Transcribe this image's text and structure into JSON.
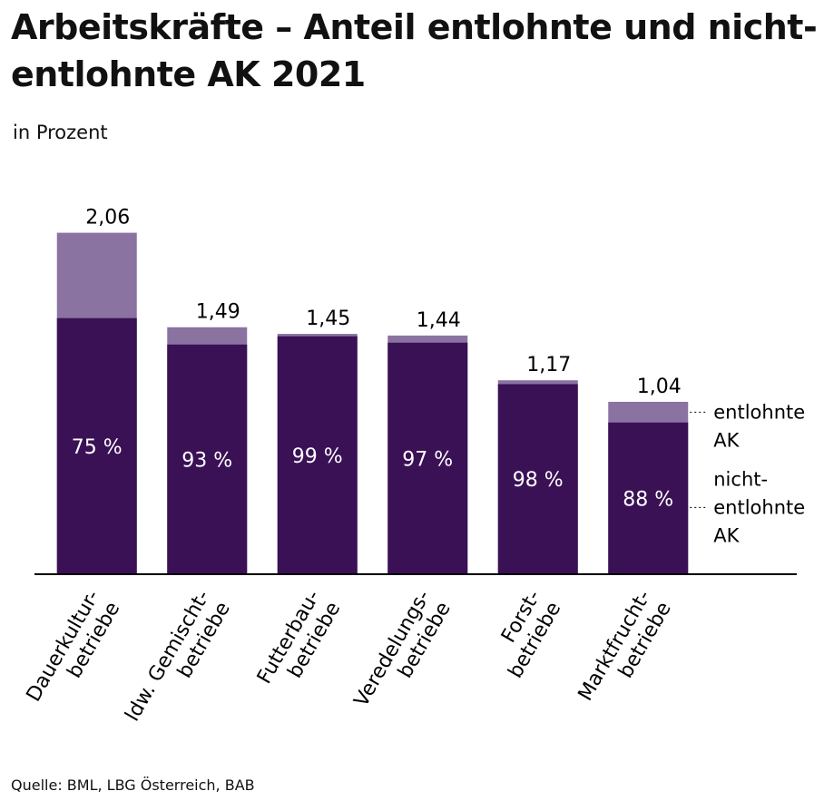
{
  "chart_data": {
    "type": "bar",
    "title": "Arbeitskräfte – Anteil entlohnte und nicht-entlohnte AK 2021",
    "subtitle": "in Prozent",
    "source": "Quelle: BML, LBG Österreich, BAB",
    "categories": [
      [
        "Dauerkultur-",
        "betriebe"
      ],
      [
        "ldw. Gemischt-",
        "betriebe"
      ],
      [
        "Futterbau-",
        "betriebe"
      ],
      [
        "Veredelungs-",
        "betriebe"
      ],
      [
        "Forst-",
        "betriebe"
      ],
      [
        "Marktfrucht-",
        "betriebe"
      ]
    ],
    "totals": [
      2.06,
      1.49,
      1.45,
      1.44,
      1.17,
      1.04
    ],
    "totals_labels": [
      "2,06",
      "1,49",
      "1,45",
      "1,44",
      "1,17",
      "1,04"
    ],
    "series": [
      {
        "name": [
          "nicht-",
          "entlohnte",
          "AK"
        ],
        "color": "#3b1155",
        "values": [
          75,
          93,
          99,
          97,
          98,
          88
        ],
        "value_labels": [
          "75 %",
          "93 %",
          "99 %",
          "97 %",
          "98 %",
          "88 %"
        ]
      },
      {
        "name": [
          "entlohnte",
          "AK"
        ],
        "color": "#8a73a1"
      }
    ],
    "ylim": [
      0,
      2.2
    ]
  }
}
